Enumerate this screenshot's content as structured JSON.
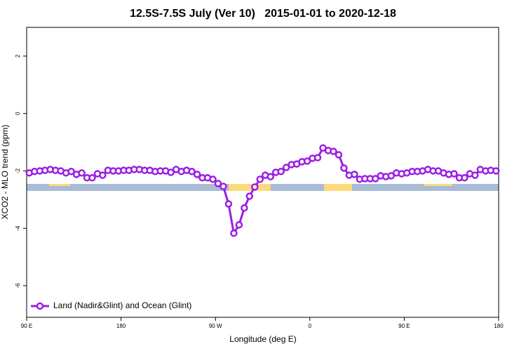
{
  "chart_data": {
    "type": "line",
    "title": "12.5S-7.5S July (Ver 10)   2015-01-01 to 2020-12-18",
    "x_label": "Longitude (deg E)",
    "y_label": "XCO2 - MLO trend (ppm)",
    "xlim": [
      90,
      540
    ],
    "ylim": [
      -7.1,
      3
    ],
    "xticks": [
      {
        "value": 90,
        "label": "90 E"
      },
      180,
      {
        "value": 270,
        "label": "90 W"
      },
      {
        "value": 360,
        "label": "0"
      },
      {
        "value": 450,
        "label": "90 E"
      },
      {
        "value": 540,
        "label": "180"
      }
    ],
    "yticks": [
      2,
      0,
      -2,
      -4,
      -6
    ],
    "legend": "bottom-left",
    "x": [
      92.5,
      97.5,
      102.5,
      107.5,
      112.5,
      117.5,
      122.5,
      127.5,
      132.5,
      137.5,
      142.5,
      147.5,
      152.5,
      157.5,
      162.5,
      167.5,
      172.5,
      177.5,
      182.5,
      187.5,
      192.5,
      197.5,
      202.5,
      207.5,
      212.5,
      217.5,
      222.5,
      227.5,
      232.5,
      237.5,
      242.5,
      247.5,
      252.5,
      257.5,
      262.5,
      267.5,
      272.5,
      277.5,
      282.5,
      287.5,
      292.5,
      297.5,
      302.5,
      307.5,
      312.5,
      317.5,
      322.5,
      327.5,
      332.5,
      337.5,
      342.5,
      347.5,
      352.5,
      357.5,
      362.5,
      367.5,
      372.5,
      377.5,
      382.5,
      387.5,
      392.5,
      397.5,
      402.5,
      407.5,
      412.5,
      417.5,
      422.5,
      427.5,
      432.5,
      437.5,
      442.5,
      447.5,
      452.5,
      457.5,
      462.5,
      467.5,
      472.5,
      477.5,
      482.5,
      487.5,
      492.5,
      497.5,
      502.5,
      507.5,
      512.5,
      517.5,
      522.5,
      527.5,
      532.5,
      537.5
    ],
    "series": [
      {
        "name": "Land (Nadir&Glint) and Ocean (Glint)",
        "color": "#9b1ee6",
        "values": [
          -2.07,
          -2.02,
          -2.0,
          -1.98,
          -1.95,
          -1.98,
          -2.0,
          -2.07,
          -2.02,
          -2.12,
          -2.07,
          -2.24,
          -2.24,
          -2.1,
          -2.15,
          -1.98,
          -2.0,
          -2.0,
          -1.98,
          -1.98,
          -1.95,
          -1.95,
          -1.98,
          -1.98,
          -2.02,
          -2.0,
          -2.0,
          -2.05,
          -1.95,
          -2.02,
          -1.98,
          -2.02,
          -2.12,
          -2.24,
          -2.24,
          -2.29,
          -2.44,
          -2.54,
          -3.15,
          -4.17,
          -3.88,
          -3.29,
          -2.88,
          -2.56,
          -2.29,
          -2.15,
          -2.2,
          -2.05,
          -2.02,
          -1.88,
          -1.78,
          -1.76,
          -1.68,
          -1.66,
          -1.56,
          -1.54,
          -1.2,
          -1.29,
          -1.32,
          -1.44,
          -1.9,
          -2.15,
          -2.12,
          -2.29,
          -2.27,
          -2.27,
          -2.27,
          -2.17,
          -2.2,
          -2.17,
          -2.07,
          -2.1,
          -2.07,
          -2.02,
          -2.02,
          -2.0,
          -1.95,
          -2.0,
          -2.0,
          -2.07,
          -2.12,
          -2.1,
          -2.24,
          -2.24,
          -2.1,
          -2.15,
          -1.95,
          -2.0,
          -1.98,
          -2.0
        ]
      }
    ]
  }
}
